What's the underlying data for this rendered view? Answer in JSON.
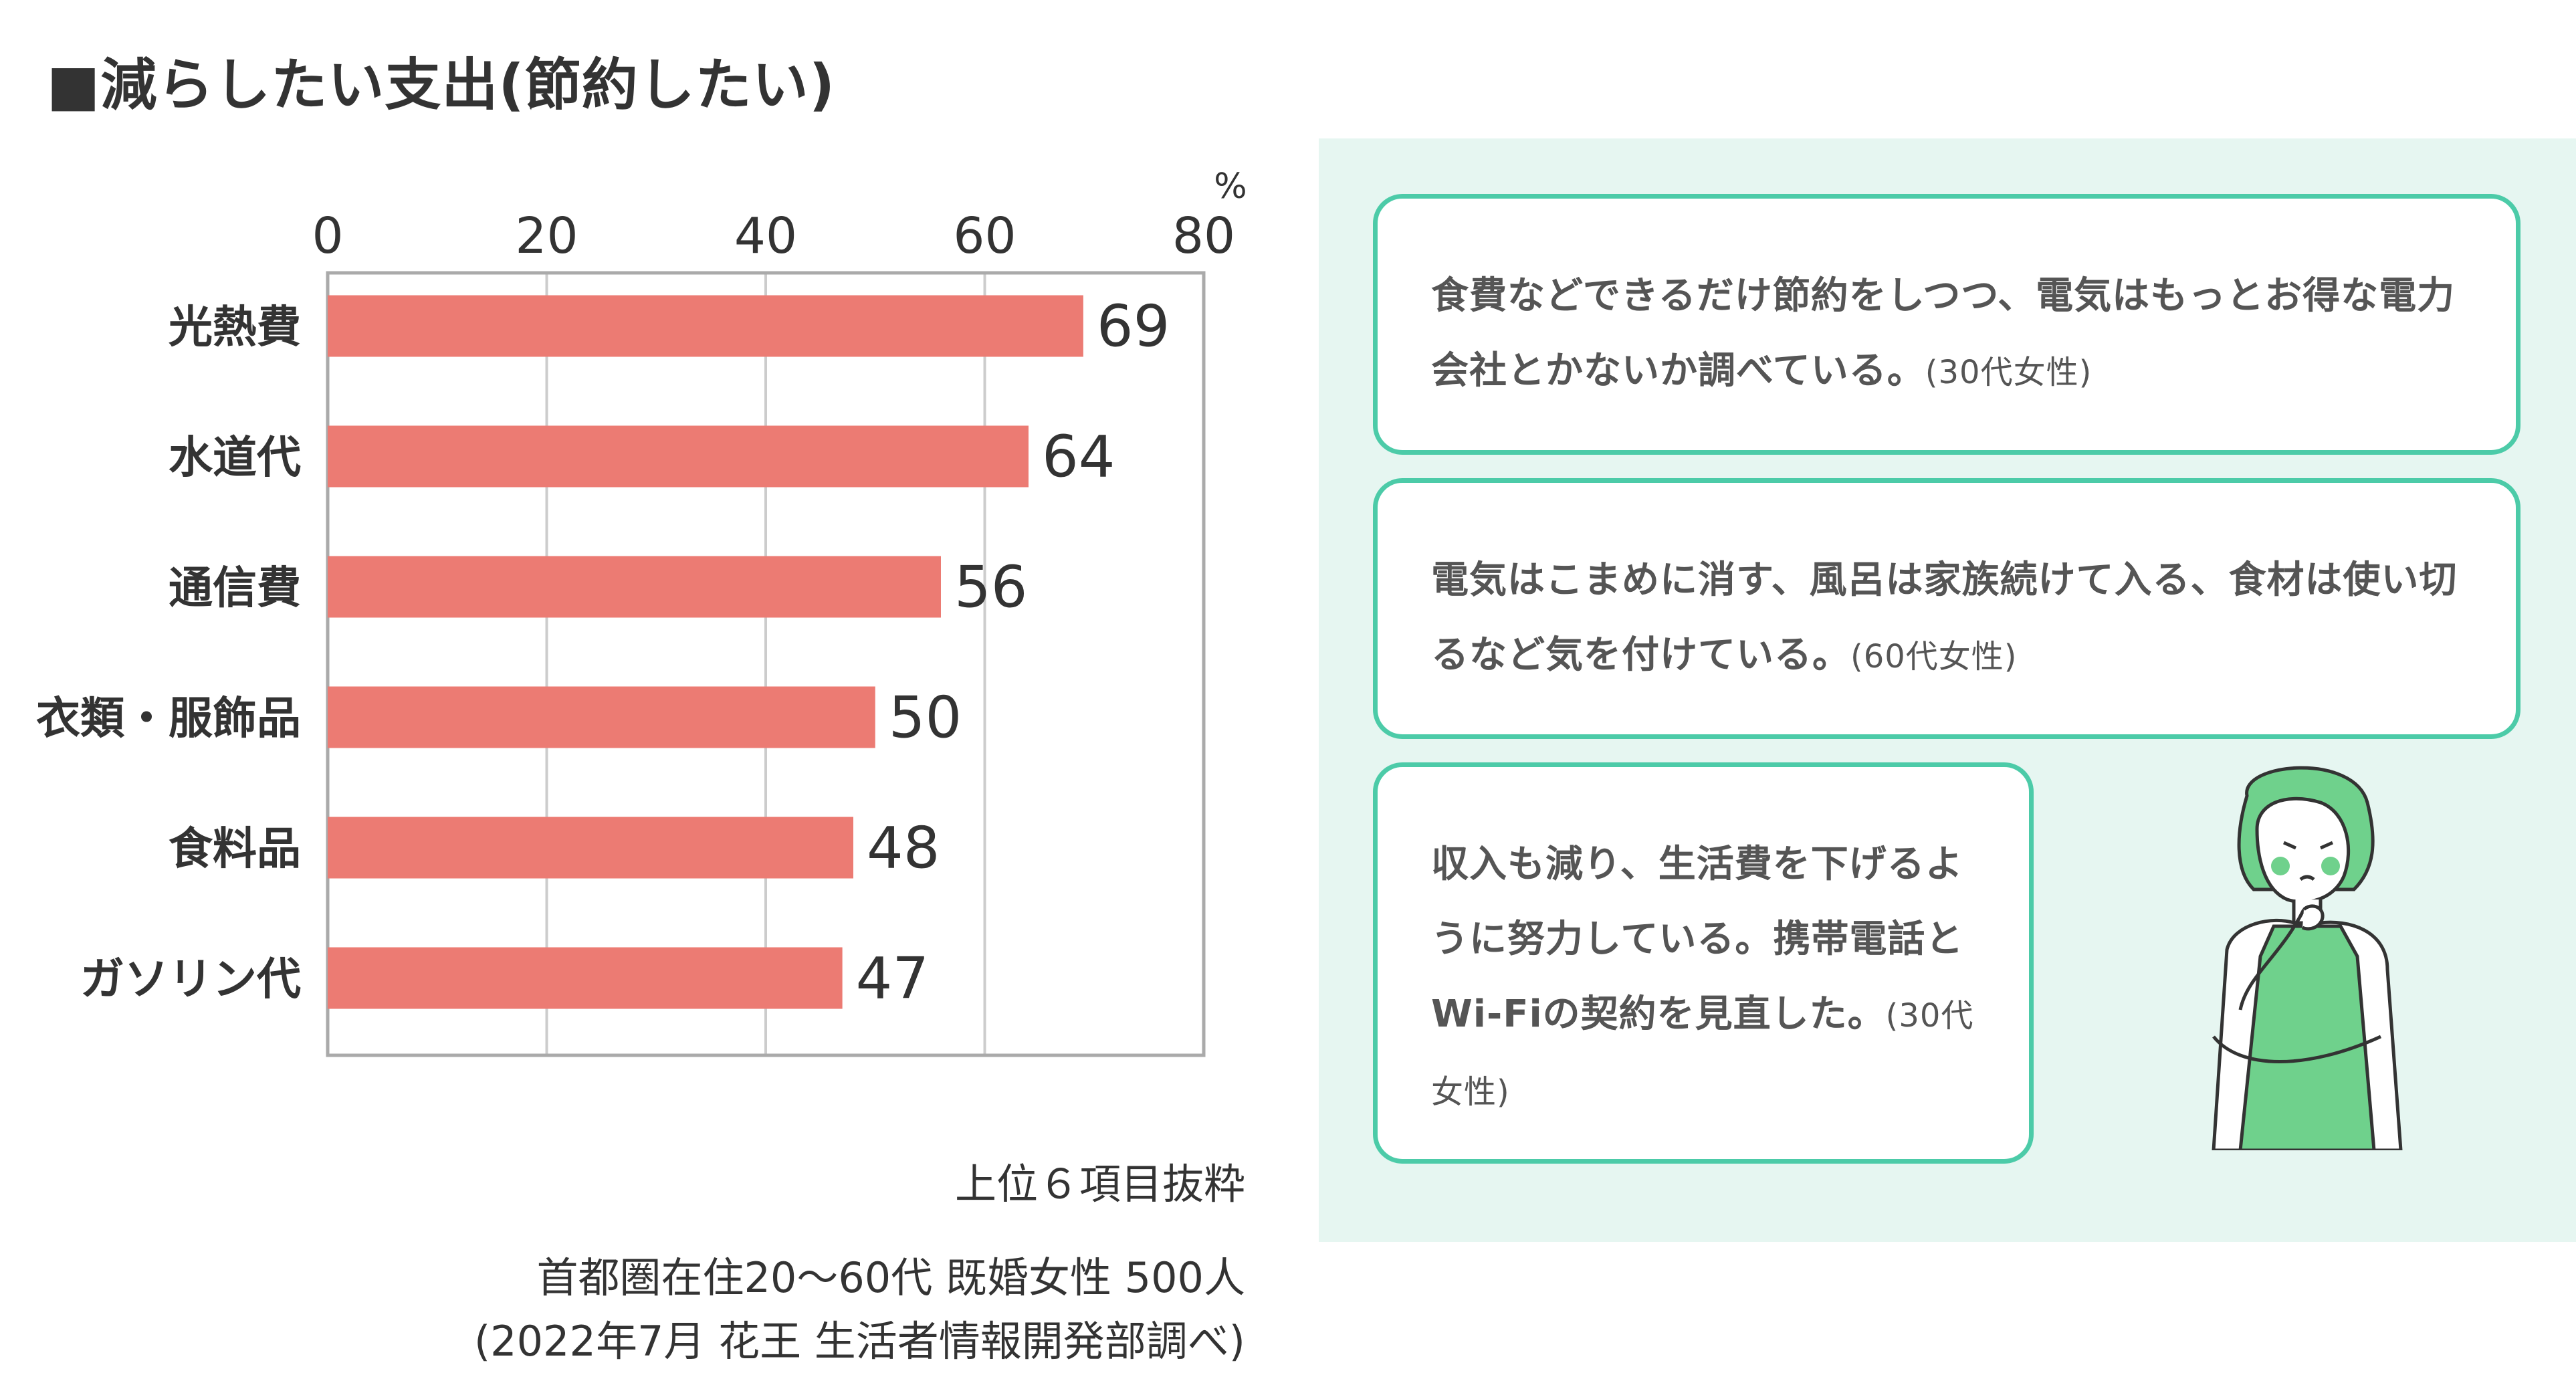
{
  "title": "■減らしたい支出(節約したい)",
  "chart_data": {
    "type": "bar",
    "orientation": "horizontal",
    "categories": [
      "光熱費",
      "水道代",
      "通信費",
      "衣類・服飾品",
      "食料品",
      "ガソリン代"
    ],
    "values": [
      69,
      64,
      56,
      50,
      48,
      47
    ],
    "value_labels": [
      "69",
      "64",
      "56",
      "50",
      "48",
      "47"
    ],
    "xlim": [
      0,
      80
    ],
    "xticks": [
      "0",
      "20",
      "40",
      "60",
      "80"
    ],
    "unit": "%",
    "grid": true,
    "bar_color": "#ec7b73",
    "grid_color": "#cccccc"
  },
  "notes": {
    "top6": "上位６項目抜粋",
    "survey_line1": "首都圏在住20～60代 既婚女性 500人",
    "survey_line2": "(2022年7月 花王 生活者情報開発部調べ)"
  },
  "comments": [
    {
      "text": "食費などできるだけ節約をしつつ、電気はもっとお得な電力会社とかないか調べている。",
      "who": "(30代女性)"
    },
    {
      "text": "電気はこまめに消す、風呂は家族続けて入る、食材は使い切るなど気を付けている。",
      "who": "(60代女性)"
    },
    {
      "text": "収入も減り、生活費を下げるように努力している。携帯電話とWi-Fiの契約を見直した。",
      "who": "(30代女性)"
    }
  ],
  "colors": {
    "panel_bg": "#e6f6f1",
    "bubble_border": "#4ccba8",
    "figure_green": "#6fd18c"
  },
  "icons": {
    "figure": "thinking-woman-illustration"
  }
}
